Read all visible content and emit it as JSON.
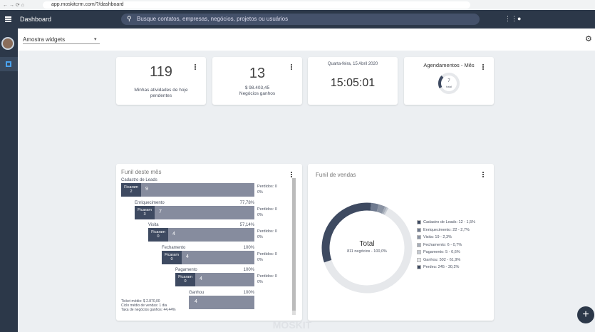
{
  "browser": {
    "url": "app.moskitcrm.com/?/dashboard"
  },
  "header": {
    "title": "Dashboard",
    "search_placeholder": "Busque contatos, empresas, negócios, projetos ou usuários"
  },
  "toolbar": {
    "dashboard_select": "Amostra widgets"
  },
  "widgets": {
    "activities": {
      "value": 119,
      "label": "Minhas atividades de hoje pendentes"
    },
    "deals_won": {
      "value": 13,
      "amount": "$ 98.403,45",
      "label": "Negócios ganhos"
    },
    "clock": {
      "date": "Quarta-feira, 15 Abril 2020",
      "time": "15:05:01"
    },
    "appointments": {
      "title": "Agendamentos - Mês",
      "total": 7,
      "total_label": "total"
    }
  },
  "month_funnel": {
    "title": "Funil deste mês",
    "kept_label": "Ficaram",
    "stages": [
      {
        "name": "Cadastro de Leads",
        "kept": 2,
        "value": 9,
        "lost": "Perdidos: 0",
        "lost_rate": "0%"
      },
      {
        "name": "Enriquecimento",
        "rate": "77,78%",
        "kept": 3,
        "value": 7,
        "lost": "Perdidos: 0",
        "lost_rate": "0%"
      },
      {
        "name": "Visita",
        "rate": "57,14%",
        "kept": 0,
        "value": 4,
        "lost": "Perdidos: 0",
        "lost_rate": "0%"
      },
      {
        "name": "Fechamento",
        "rate": "100%",
        "kept": 0,
        "value": 4,
        "lost": "Perdidos: 0",
        "lost_rate": "0%"
      },
      {
        "name": "Pagamento",
        "rate": "100%",
        "kept": 0,
        "value": 4,
        "lost": "Perdidos: 0",
        "lost_rate": "0%"
      },
      {
        "name": "Ganhou",
        "rate": "100%",
        "value": 4
      }
    ],
    "summary": [
      "Ticket médio: $ 2.870,00",
      "Ciclo médio de vendas: 1 dia",
      "Taxa de negócios ganhos: 44,44%"
    ]
  },
  "sales_funnel": {
    "title": "Funil de vendas",
    "center_title": "Total",
    "center_subtitle": "811 negócios - 100,0%",
    "legend": [
      {
        "text": "Cadastro de Leads: 12 - 1,5%",
        "value": 12,
        "color": "#3e4a61"
      },
      {
        "text": "Enriquecimento: 22 - 2,7%",
        "value": 22,
        "color": "#6f7a8f"
      },
      {
        "text": "Visita: 19 - 2,3%",
        "value": 19,
        "color": "#8a93a3"
      },
      {
        "text": "Fechamento: 6 - 0,7%",
        "value": 6,
        "color": "#a6adb9"
      },
      {
        "text": "Pagamento: 5 - 0,6%",
        "value": 5,
        "color": "#c4c9d1"
      },
      {
        "text": "Ganhou: 502 - 61,9%",
        "value": 502,
        "color": "#e6e8eb"
      },
      {
        "text": "Perdeu: 245 - 30,2%",
        "value": 245,
        "color": "#3e4a61"
      }
    ]
  },
  "footer": {
    "watermark": "MOSKIT"
  }
}
